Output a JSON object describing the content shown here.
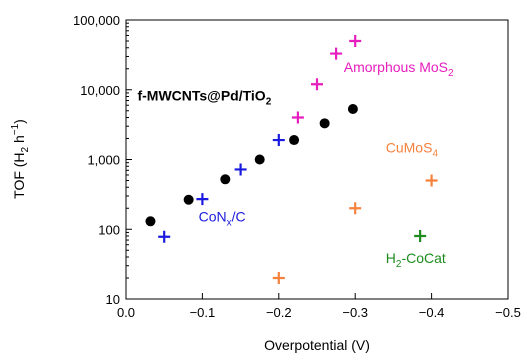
{
  "chart_data": {
    "type": "scatter",
    "title": "",
    "xlabel": "Overpotential (V)",
    "ylabel": "TOF (H2 h−1)",
    "xlim": [
      0.0,
      -0.5
    ],
    "ylim": [
      10,
      100000
    ],
    "y_scale": "log",
    "x_ticks": [
      0.0,
      -0.1,
      -0.2,
      -0.3,
      -0.4,
      -0.5
    ],
    "x_tick_labels": [
      "0.0",
      "−0.1",
      "−0.2",
      "−0.3",
      "−0.4",
      "−0.5"
    ],
    "y_ticks": [
      10,
      100,
      1000,
      10000,
      100000
    ],
    "y_tick_labels": [
      "10",
      "100",
      "1,000",
      "10,000",
      "100,000"
    ],
    "grid": false,
    "series": [
      {
        "name": "f-MWCNTs@Pd/TiO2",
        "marker": "circle",
        "color": "#000000",
        "points": [
          {
            "x": -0.032,
            "y": 130
          },
          {
            "x": -0.082,
            "y": 265
          },
          {
            "x": -0.13,
            "y": 520
          },
          {
            "x": -0.175,
            "y": 1000
          },
          {
            "x": -0.22,
            "y": 1900
          },
          {
            "x": -0.26,
            "y": 3300
          },
          {
            "x": -0.297,
            "y": 5300
          }
        ]
      },
      {
        "name": "CoNx/C",
        "marker": "plus",
        "color": "#1a1adf",
        "points": [
          {
            "x": -0.05,
            "y": 78
          },
          {
            "x": -0.1,
            "y": 270
          },
          {
            "x": -0.15,
            "y": 720
          },
          {
            "x": -0.2,
            "y": 1900
          }
        ]
      },
      {
        "name": "Amorphous MoS2",
        "marker": "plus",
        "color": "#e61ebe",
        "points": [
          {
            "x": -0.225,
            "y": 4000
          },
          {
            "x": -0.25,
            "y": 12000
          },
          {
            "x": -0.275,
            "y": 33000
          },
          {
            "x": -0.3,
            "y": 50000
          }
        ]
      },
      {
        "name": "CuMoS4",
        "marker": "plus",
        "color": "#f5823c",
        "points": [
          {
            "x": -0.2,
            "y": 20
          },
          {
            "x": -0.3,
            "y": 200
          },
          {
            "x": -0.4,
            "y": 500
          }
        ]
      },
      {
        "name": "H2-CoCat",
        "marker": "plus",
        "color": "#1e8c1e",
        "points": [
          {
            "x": -0.385,
            "y": 80
          }
        ]
      }
    ],
    "annotations": [
      {
        "id": "fmwcnt",
        "text": "f-MWCNTs@Pd/TiO",
        "sub": "2",
        "sup": "",
        "tail": "",
        "color": "#000000",
        "bold": true,
        "x": -0.015,
        "y": 7000
      },
      {
        "id": "con",
        "text": "CoN",
        "sub": "x",
        "sup": "",
        "tail": "/C",
        "color": "#1a1adf",
        "bold": false,
        "x": -0.095,
        "y": 130
      },
      {
        "id": "mos2",
        "text": "Amorphous MoS",
        "sub": "2",
        "sup": "",
        "tail": "",
        "color": "#e61ebe",
        "bold": false,
        "x": -0.285,
        "y": 18000
      },
      {
        "id": "cumos4",
        "text": "CuMoS",
        "sub": "4",
        "sup": "",
        "tail": "",
        "color": "#f5823c",
        "bold": false,
        "x": -0.34,
        "y": 1250
      },
      {
        "id": "h2cocat",
        "text": "H",
        "sub": "2",
        "sup": "",
        "tail": "-CoCat",
        "color": "#1e8c1e",
        "bold": false,
        "x": -0.34,
        "y": 33
      }
    ]
  }
}
